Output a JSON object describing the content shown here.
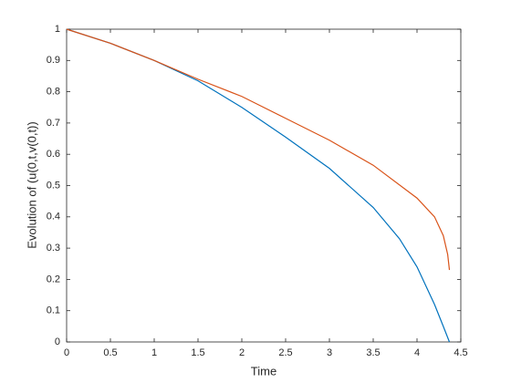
{
  "chart_data": {
    "type": "line",
    "xlabel": "Time",
    "ylabel": "Evolution of (u(0,t,v(0,t))",
    "xlim": [
      0,
      4.5
    ],
    "xticks": [
      0,
      0.5,
      1,
      1.5,
      2,
      2.5,
      3,
      3.5,
      4,
      4.5
    ],
    "ylim": [
      0,
      1
    ],
    "yticks": [
      0,
      0.1,
      0.2,
      0.3,
      0.4,
      0.5,
      0.6,
      0.7,
      0.8,
      0.9,
      1
    ],
    "series": [
      {
        "color": "#0072bd",
        "x": [
          0,
          0.5,
          1,
          1.5,
          2,
          2.5,
          3,
          3.5,
          3.8,
          4,
          4.2,
          4.3,
          4.37
        ],
        "values": [
          1,
          0.955,
          0.9,
          0.835,
          0.75,
          0.655,
          0.555,
          0.43,
          0.33,
          0.24,
          0.12,
          0.05,
          0
        ]
      },
      {
        "color": "#d95319",
        "x": [
          0,
          0.5,
          1,
          1.5,
          2,
          2.5,
          3,
          3.5,
          4,
          4.2,
          4.3,
          4.35,
          4.37
        ],
        "values": [
          1,
          0.955,
          0.9,
          0.84,
          0.785,
          0.715,
          0.645,
          0.565,
          0.46,
          0.4,
          0.34,
          0.28,
          0.23
        ]
      }
    ]
  }
}
